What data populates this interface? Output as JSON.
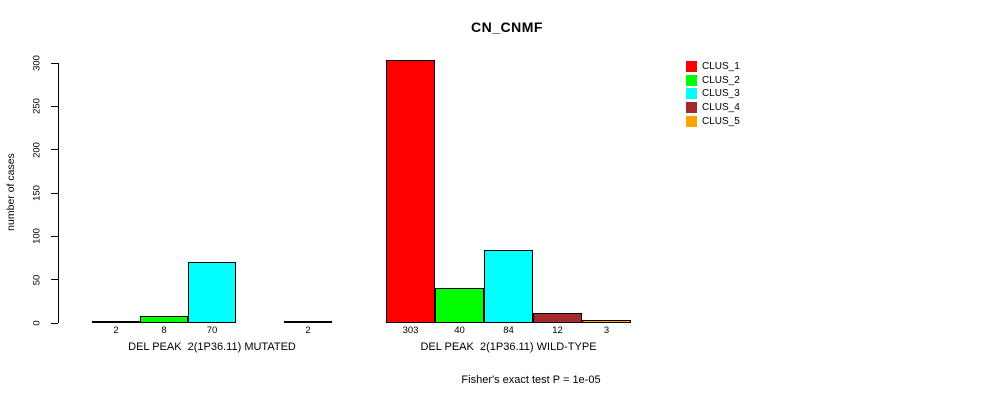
{
  "page": {
    "background": "#ffffff"
  },
  "chart_data": {
    "type": "bar",
    "title": "CN_CNMF",
    "ylabel": "number of cases",
    "ylim": [
      0,
      300
    ],
    "yticks": [
      0,
      50,
      100,
      150,
      200,
      250,
      300
    ],
    "grid": false,
    "legend": {
      "position": "right",
      "entries": [
        {
          "label": "CLUS_1",
          "color": "#FF0000"
        },
        {
          "label": "CLUS_2",
          "color": "#00FF00"
        },
        {
          "label": "CLUS_3",
          "color": "#00FFFF"
        },
        {
          "label": "CLUS_4",
          "color": "#A52A2A"
        },
        {
          "label": "CLUS_5",
          "color": "#FFA500"
        }
      ]
    },
    "groups": [
      {
        "label": "DEL PEAK  2(1P36.11) MUTATED",
        "values": [
          2,
          8,
          70,
          0,
          2
        ],
        "bar_labels": [
          "2",
          "8",
          "70",
          "",
          "2"
        ]
      },
      {
        "label": "DEL PEAK  2(1P36.11) WILD-TYPE",
        "values": [
          303,
          40,
          84,
          12,
          3
        ],
        "bar_labels": [
          "303",
          "40",
          "84",
          "12",
          "3"
        ]
      }
    ],
    "footnote": "Fisher's exact test P = 1e-05"
  }
}
